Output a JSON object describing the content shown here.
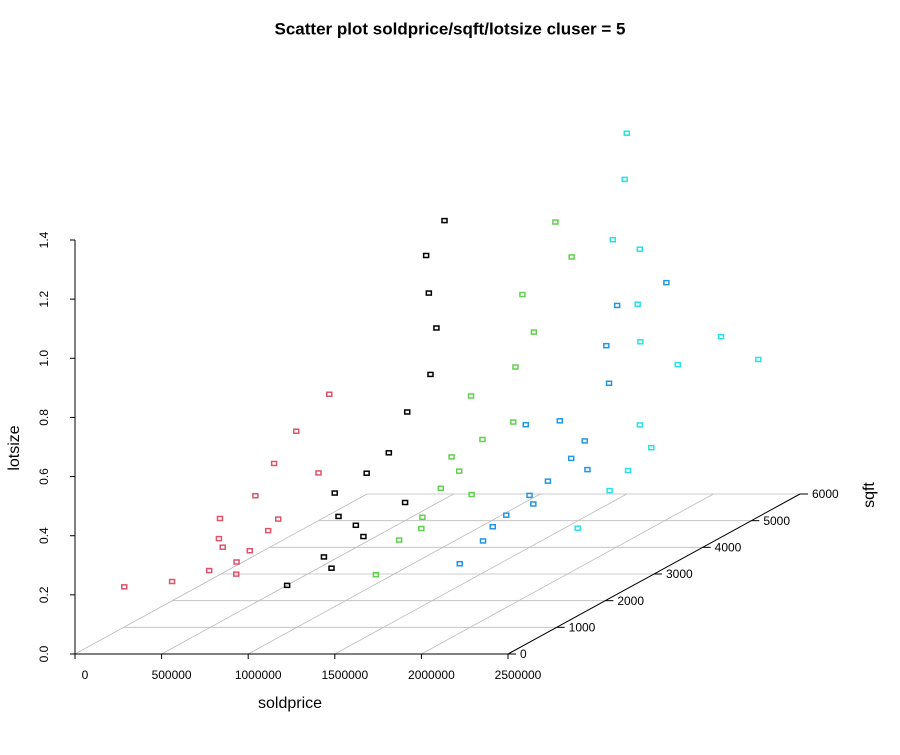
{
  "chart_data": {
    "type": "scatter3d",
    "title": "Scatter plot soldprice/sqft/lotsize cluser = 5",
    "xlabel": "soldprice",
    "ylabel": "sqft",
    "zlabel": "lotsize",
    "xlim": [
      0,
      2500000
    ],
    "xticks": [
      0,
      500000,
      1000000,
      1500000,
      2000000,
      2500000
    ],
    "ylim": [
      0,
      6000
    ],
    "yticks": [
      0,
      1000,
      2000,
      3000,
      4000,
      5000,
      6000
    ],
    "zlim": [
      0,
      1.4
    ],
    "zticks": [
      {
        "value": 0,
        "label": "0.0"
      },
      0.2,
      0.4,
      0.6,
      0.8,
      {
        "value": 1,
        "label": "1.0"
      },
      1.2,
      1.4
    ],
    "grid": true,
    "series": [
      {
        "color": "#DF536B",
        "x": [
          200000,
          420000,
          550000,
          600000,
          650000,
          700000,
          500000,
          620000,
          700000,
          800000,
          850000,
          750000,
          680000,
          780000,
          900000,
          550000
        ],
        "y": [
          300,
          500,
          800,
          900,
          1000,
          1100,
          1200,
          1500,
          1600,
          1700,
          2200,
          1300,
          900,
          1400,
          1800,
          1000
        ],
        "z": [
          0.2,
          0.2,
          0.21,
          0.28,
          0.18,
          0.25,
          0.35,
          0.4,
          0.5,
          0.6,
          0.68,
          0.3,
          0.23,
          0.33,
          0.45,
          0.3
        ]
      },
      {
        "color": "#000000",
        "x": [
          1000000,
          1100000,
          1200000,
          1050000,
          1250000,
          1300000,
          1150000,
          1350000,
          1300000,
          1200000,
          1100000,
          1150000,
          1300000,
          1200000,
          1400000,
          1100000
        ],
        "y": [
          800,
          1200,
          1500,
          1600,
          2000,
          2200,
          1900,
          2500,
          2800,
          3000,
          3300,
          3500,
          1300,
          1000,
          1800,
          1500
        ],
        "z": [
          0.16,
          0.22,
          0.3,
          0.4,
          0.5,
          0.62,
          0.44,
          0.72,
          0.85,
          0.95,
          1.05,
          1.15,
          0.28,
          0.2,
          0.35,
          0.33
        ]
      },
      {
        "color": "#61D04F",
        "x": [
          1400000,
          1450000,
          1500000,
          1550000,
          1600000,
          1650000,
          1500000,
          1700000,
          1750000,
          1600000,
          1800000,
          1650000,
          1550000,
          1700000,
          1500000,
          1800000
        ],
        "y": [
          1200,
          1500,
          1800,
          2000,
          2200,
          2500,
          2800,
          3000,
          3200,
          3500,
          3800,
          4000,
          1600,
          2100,
          2400,
          2600
        ],
        "z": [
          0.16,
          0.25,
          0.3,
          0.38,
          0.42,
          0.5,
          0.62,
          0.7,
          0.8,
          0.9,
          1.0,
          1.1,
          0.28,
          0.35,
          0.45,
          0.55
        ]
      },
      {
        "color": "#2297E6",
        "x": [
          1800000,
          1850000,
          1900000,
          1950000,
          2000000,
          2050000,
          1900000,
          2100000,
          2000000,
          1950000,
          2150000,
          2100000,
          1850000,
          2200000,
          2000000,
          1900000
        ],
        "y": [
          1500,
          1800,
          2100,
          2400,
          2600,
          2900,
          3200,
          3500,
          3800,
          4200,
          4500,
          3000,
          2000,
          2700,
          2300,
          2500
        ],
        "z": [
          0.17,
          0.22,
          0.28,
          0.32,
          0.35,
          0.4,
          0.5,
          0.6,
          0.7,
          0.8,
          0.85,
          0.45,
          0.25,
          0.38,
          0.3,
          0.55
        ]
      },
      {
        "color": "#28E2E5",
        "x": [
          2200000,
          2300000,
          2350000,
          2400000,
          2250000,
          2000000,
          1800000,
          1600000,
          1500000,
          1700000,
          2100000,
          1900000,
          2300000,
          2400000
        ],
        "y": [
          2500,
          2800,
          3000,
          3300,
          3600,
          4500,
          5200,
          5600,
          6000,
          5000,
          5800,
          4800,
          4200,
          5500
        ],
        "z": [
          0.2,
          0.3,
          0.35,
          0.4,
          0.45,
          0.65,
          0.9,
          1.1,
          1.22,
          0.95,
          0.55,
          0.75,
          0.6,
          0.5
        ]
      }
    ]
  }
}
